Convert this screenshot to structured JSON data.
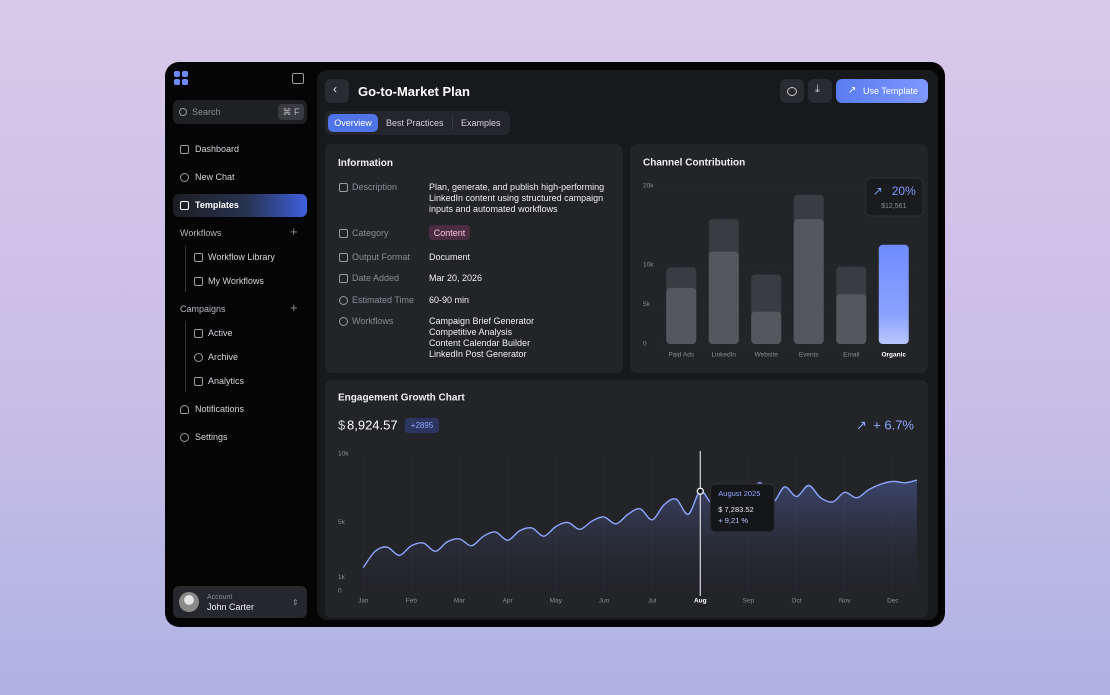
{
  "sidebar": {
    "search": "Search",
    "shortcut": "⌘ F",
    "nav": [
      "Dashboard",
      "New Chat",
      "Templates"
    ],
    "groups": [
      {
        "label": "Workflows",
        "items": [
          "Workflow Library",
          "My Workflows"
        ]
      },
      {
        "label": "Campaigns",
        "items": [
          "Active",
          "Archive",
          "Analytics"
        ]
      }
    ],
    "footer_nav": [
      "Notifications",
      "Settings"
    ],
    "account": {
      "label": "Account",
      "name": "John Carter"
    }
  },
  "header": {
    "title": "Go-to-Market Plan",
    "action": "Use Template",
    "tabs": [
      "Overview",
      "Best Practices",
      "Examples"
    ]
  },
  "information": {
    "title": "Information",
    "rows": [
      {
        "label": "Description",
        "value": "Plan, generate, and publish high-performing LinkedIn content using structured campaign inputs and automated workflows"
      },
      {
        "label": "Category",
        "value": "Content"
      },
      {
        "label": "Output Format",
        "value": "Document"
      },
      {
        "label": "Date Added",
        "value": "Mar 20, 2026"
      },
      {
        "label": "Estimated Time",
        "value": "60-90 min"
      },
      {
        "label": "Workflows",
        "values": [
          "Campaign Brief Generator",
          "Competitive Analysis",
          "Content Calendar Builder",
          "LinkedIn Post Generator"
        ]
      }
    ]
  },
  "chart_data": [
    {
      "type": "bar",
      "title": "Channel Contribution",
      "categories": [
        "Paid Ads",
        "LinkedIn",
        "Website",
        "Events",
        "Email",
        "Organic"
      ],
      "series": [
        {
          "color": "#3b3c41",
          "values": [
            9700,
            15800,
            8800,
            18900,
            9800,
            null
          ]
        },
        {
          "color": "#56575c",
          "values": [
            7100,
            11700,
            4100,
            15800,
            6300,
            12561
          ]
        }
      ],
      "highlight": "Organic",
      "highlight_color": "#7f98ff",
      "annotation": {
        "change": "20%",
        "value": "$12,561"
      },
      "ylim": [
        0,
        20000
      ],
      "yticks": [
        0,
        {
          "value": 5000,
          "label": "5k"
        },
        {
          "value": 10000,
          "label": "10k"
        },
        {
          "value": 20000,
          "label": "20k"
        }
      ]
    },
    {
      "type": "line",
      "title": "Engagement Growth Chart",
      "currency": "$",
      "total": "8,924.57",
      "badge": "+2895",
      "change": "+ 6.7%",
      "color": "#8ea6ff",
      "x": [
        0,
        0.25,
        0.5,
        0.75,
        1,
        1.25,
        1.5,
        1.75,
        2,
        2.25,
        2.5,
        2.75,
        3,
        3.25,
        3.5,
        3.75,
        4,
        4.25,
        4.5,
        4.75,
        5,
        5.25,
        5.5,
        5.75,
        6,
        6.25,
        6.5,
        6.75,
        7,
        7.25,
        7.5,
        7.75,
        8,
        8.25,
        8.5,
        8.75,
        9,
        9.25,
        9.5,
        9.75,
        10,
        10.25,
        10.5,
        10.75,
        11,
        11.25,
        11.5
      ],
      "values": [
        1700,
        2900,
        3200,
        2600,
        3300,
        3500,
        2900,
        3600,
        3800,
        3300,
        4000,
        4300,
        3700,
        4400,
        4600,
        4000,
        4700,
        5000,
        4500,
        5100,
        5400,
        4900,
        5600,
        6000,
        5200,
        6300,
        6700,
        5600,
        7283.52,
        6400,
        7100,
        6600,
        7000,
        7900,
        6500,
        7600,
        6900,
        7700,
        6800,
        6500,
        7200,
        6800,
        7400,
        7800,
        8000,
        7900,
        8100
      ],
      "xlim": [
        -0.17,
        11.5
      ],
      "xticks": [
        {
          "value": 0,
          "label": "Jan"
        },
        {
          "value": 1,
          "label": "Feb"
        },
        {
          "value": 2,
          "label": "Mar"
        },
        {
          "value": 3,
          "label": "Apr"
        },
        {
          "value": 4,
          "label": "May"
        },
        {
          "value": 5,
          "label": "Jun"
        },
        {
          "value": 6,
          "label": "Jul"
        },
        {
          "value": 7,
          "label": "Aug"
        },
        {
          "value": 8,
          "label": "Sep"
        },
        {
          "value": 9,
          "label": "Oct"
        },
        {
          "value": 10,
          "label": "Nov"
        },
        {
          "value": 11,
          "label": "Dec"
        }
      ],
      "ylim": [
        0,
        10000
      ],
      "yticks": [
        0,
        {
          "value": 1000,
          "label": "1k"
        },
        {
          "value": 5000,
          "label": "5k"
        },
        {
          "value": 10000,
          "label": "10k"
        }
      ],
      "highlight": {
        "x": 7,
        "title": "August 2025",
        "value": "$ 7,283.52",
        "change": "+ 9,21 %"
      }
    }
  ]
}
